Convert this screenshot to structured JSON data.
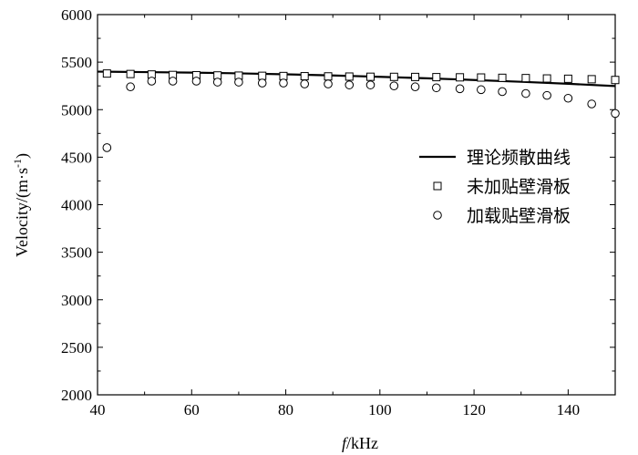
{
  "chart_data": {
    "type": "line",
    "title": "",
    "xlabel_italic": "f",
    "xlabel_rest": "/kHz",
    "ylabel_main": "Velocity/(m·s",
    "ylabel_sup": "-1",
    "ylabel_close": ")",
    "xlim": [
      40,
      150
    ],
    "ylim": [
      2000,
      6000
    ],
    "x_ticks": [
      40,
      60,
      80,
      100,
      120,
      140
    ],
    "y_ticks": [
      2000,
      2500,
      3000,
      3500,
      4000,
      4500,
      5000,
      5500,
      6000
    ],
    "grid": false,
    "legend_position": "right",
    "series": [
      {
        "name": "理论频散曲线",
        "style": "line",
        "x": [
          40,
          50,
          60,
          70,
          80,
          90,
          100,
          110,
          120,
          130,
          140,
          150
        ],
        "y": [
          5400,
          5395,
          5390,
          5382,
          5372,
          5360,
          5345,
          5330,
          5312,
          5293,
          5272,
          5248
        ]
      },
      {
        "name": "未加贴壁滑板",
        "style": "square",
        "x": [
          42,
          47,
          51.5,
          56,
          61,
          65.5,
          70,
          75,
          79.5,
          84,
          89,
          93.5,
          98,
          103,
          107.5,
          112,
          117,
          121.5,
          126,
          131,
          135.5,
          140,
          145,
          150
        ],
        "y": [
          5380,
          5375,
          5370,
          5365,
          5362,
          5360,
          5358,
          5356,
          5354,
          5352,
          5350,
          5348,
          5346,
          5345,
          5344,
          5342,
          5340,
          5338,
          5335,
          5332,
          5328,
          5325,
          5320,
          5312
        ]
      },
      {
        "name": "加载贴壁滑板",
        "style": "circle",
        "x": [
          42,
          47,
          51.5,
          56,
          61,
          65.5,
          70,
          75,
          79.5,
          84,
          89,
          93.5,
          98,
          103,
          107.5,
          112,
          117,
          121.5,
          126,
          131,
          135.5,
          140,
          145,
          150
        ],
        "y": [
          4600,
          5240,
          5300,
          5300,
          5300,
          5290,
          5290,
          5280,
          5280,
          5270,
          5270,
          5260,
          5260,
          5250,
          5240,
          5230,
          5220,
          5210,
          5190,
          5170,
          5150,
          5120,
          5060,
          4960
        ]
      }
    ]
  }
}
